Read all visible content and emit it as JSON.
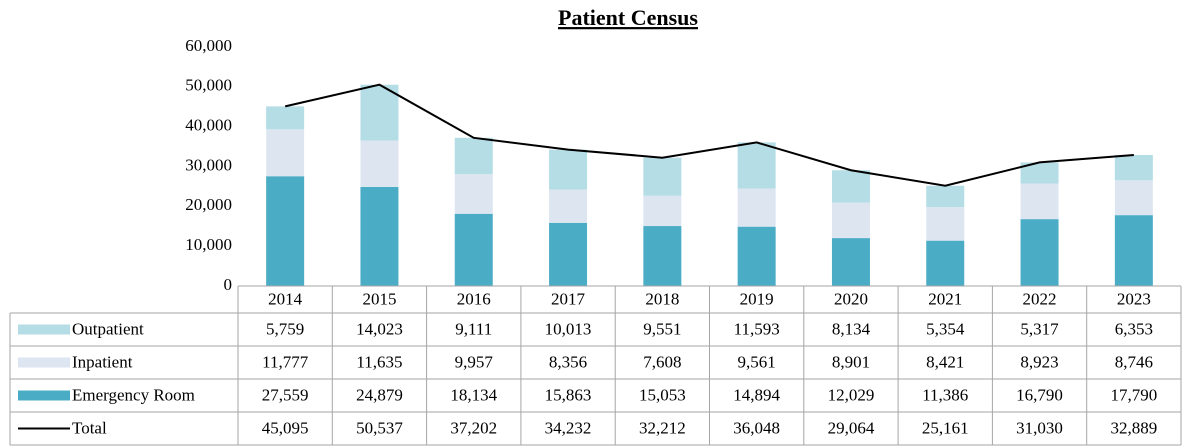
{
  "chart_data": {
    "type": "bar",
    "stacked": true,
    "title": "Patient Census",
    "categories": [
      "2014",
      "2015",
      "2016",
      "2017",
      "2018",
      "2019",
      "2020",
      "2021",
      "2022",
      "2023"
    ],
    "series": [
      {
        "name": "Outpatient",
        "color": "#b4dde6",
        "values": [
          5759,
          14023,
          9111,
          10013,
          9551,
          11593,
          8134,
          5354,
          5317,
          6353
        ],
        "value_labels": [
          "5,759",
          "14,023",
          "9,111",
          "10,013",
          "9,551",
          "11,593",
          "8,134",
          "5,354",
          "5,317",
          "6,353"
        ]
      },
      {
        "name": "Inpatient",
        "color": "#dde6f0",
        "values": [
          11777,
          11635,
          9957,
          8356,
          7608,
          9561,
          8901,
          8421,
          8923,
          8746
        ],
        "value_labels": [
          "11,777",
          "11,635",
          "9,957",
          "8,356",
          "7,608",
          "9,561",
          "8,901",
          "8,421",
          "8,923",
          "8,746"
        ]
      },
      {
        "name": "Emergency Room",
        "color": "#4bacc6",
        "values": [
          27559,
          24879,
          18134,
          15863,
          15053,
          14894,
          12029,
          11386,
          16790,
          17790
        ],
        "value_labels": [
          "27,559",
          "24,879",
          "18,134",
          "15,863",
          "15,053",
          "14,894",
          "12,029",
          "11,386",
          "16,790",
          "17,790"
        ]
      },
      {
        "name": "Total",
        "type": "line",
        "color": "#000000",
        "values": [
          45095,
          50537,
          37202,
          34232,
          32212,
          36048,
          29064,
          25161,
          31030,
          32889
        ],
        "value_labels": [
          "45,095",
          "50,537",
          "37,202",
          "34,232",
          "32,212",
          "36,048",
          "29,064",
          "25,161",
          "31,030",
          "32,889"
        ]
      }
    ],
    "ylim": [
      0,
      60000
    ],
    "yticks": [
      0,
      {
        "value": 10000,
        "label": "10,000"
      },
      {
        "value": 20000,
        "label": "20,000"
      },
      {
        "value": 30000,
        "label": "30,000"
      },
      {
        "value": 40000,
        "label": "40,000"
      },
      {
        "value": 50000,
        "label": "50,000"
      },
      {
        "value": 60000,
        "label": "60,000"
      }
    ],
    "grid": false
  }
}
